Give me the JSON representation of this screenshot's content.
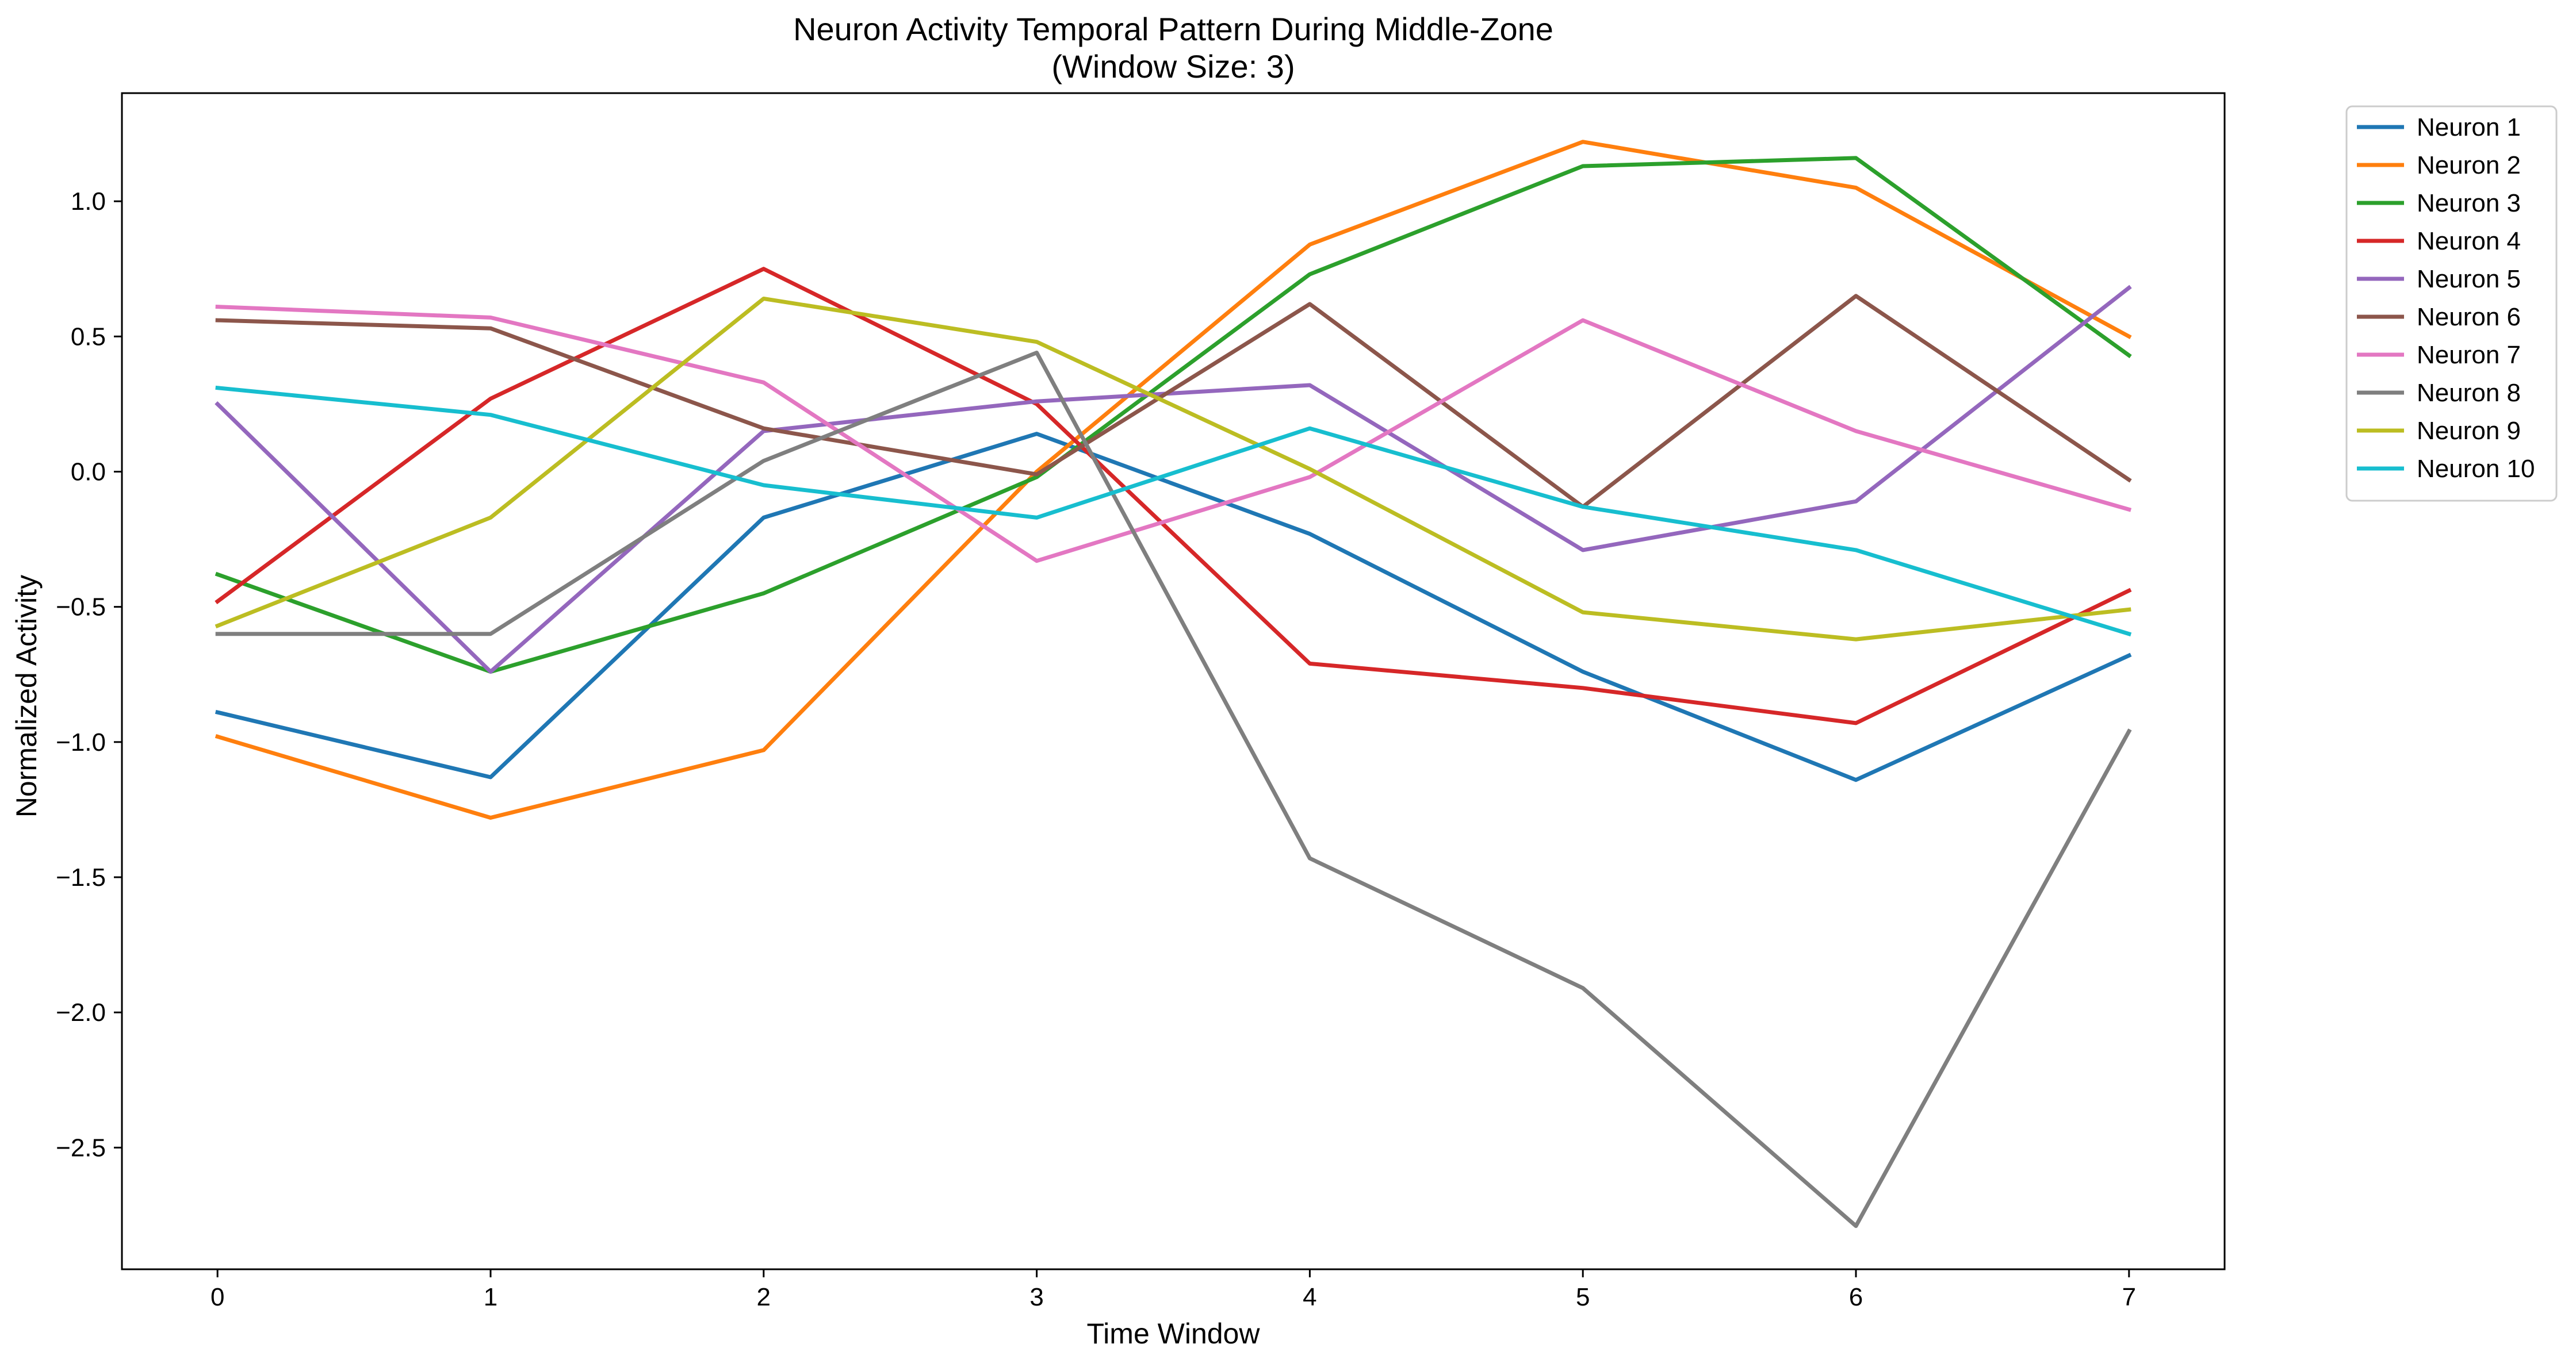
{
  "chart_data": {
    "type": "line",
    "title": "Neuron Activity Temporal Pattern During Middle-Zone",
    "subtitle": "(Window Size: 3)",
    "xlabel": "Time Window",
    "ylabel": "Normalized Activity",
    "x": [
      0,
      1,
      2,
      3,
      4,
      5,
      6,
      7
    ],
    "xlim": [
      -0.35,
      7.35
    ],
    "ylim": [
      -2.95,
      1.4
    ],
    "xticks": [
      0,
      1,
      2,
      3,
      4,
      5,
      6,
      7
    ],
    "yticks": [
      1.0,
      0.5,
      0.0,
      -0.5,
      -1.0,
      -1.5,
      -2.0,
      -2.5
    ],
    "ytick_labels": [
      "1.0",
      "0.5",
      "0.0",
      "−0.5",
      "−1.0",
      "−1.5",
      "−2.0",
      "−2.5"
    ],
    "grid": false,
    "legend_position": "outside-top-right",
    "series": [
      {
        "name": "Neuron 1",
        "color": "#1f77b4",
        "values": [
          -0.89,
          -1.13,
          -0.17,
          0.14,
          -0.23,
          -0.74,
          -1.14,
          -0.68
        ]
      },
      {
        "name": "Neuron 2",
        "color": "#ff7f0e",
        "values": [
          -0.98,
          -1.28,
          -1.03,
          0.0,
          0.84,
          1.22,
          1.05,
          0.5
        ]
      },
      {
        "name": "Neuron 3",
        "color": "#2ca02c",
        "values": [
          -0.38,
          -0.74,
          -0.45,
          -0.02,
          0.73,
          1.13,
          1.16,
          0.43
        ]
      },
      {
        "name": "Neuron 4",
        "color": "#d62728",
        "values": [
          -0.48,
          0.27,
          0.75,
          0.25,
          -0.71,
          -0.8,
          -0.93,
          -0.44
        ]
      },
      {
        "name": "Neuron 5",
        "color": "#9467bd",
        "values": [
          0.25,
          -0.74,
          0.15,
          0.26,
          0.32,
          -0.29,
          -0.11,
          0.68
        ]
      },
      {
        "name": "Neuron 6",
        "color": "#8c564b",
        "values": [
          0.56,
          0.53,
          0.16,
          -0.01,
          0.62,
          -0.13,
          0.65,
          -0.03
        ]
      },
      {
        "name": "Neuron 7",
        "color": "#e377c2",
        "values": [
          0.61,
          0.57,
          0.33,
          -0.33,
          -0.02,
          0.56,
          0.15,
          -0.14
        ]
      },
      {
        "name": "Neuron 8",
        "color": "#7f7f7f",
        "values": [
          -0.6,
          -0.6,
          0.04,
          0.44,
          -1.43,
          -1.91,
          -2.79,
          -0.96
        ]
      },
      {
        "name": "Neuron 9",
        "color": "#bcbd22",
        "values": [
          -0.57,
          -0.17,
          0.64,
          0.48,
          0.01,
          -0.52,
          -0.62,
          -0.51
        ]
      },
      {
        "name": "Neuron 10",
        "color": "#17becf",
        "values": [
          0.31,
          0.21,
          -0.05,
          -0.17,
          0.16,
          -0.13,
          -0.29,
          -0.6
        ]
      }
    ]
  }
}
